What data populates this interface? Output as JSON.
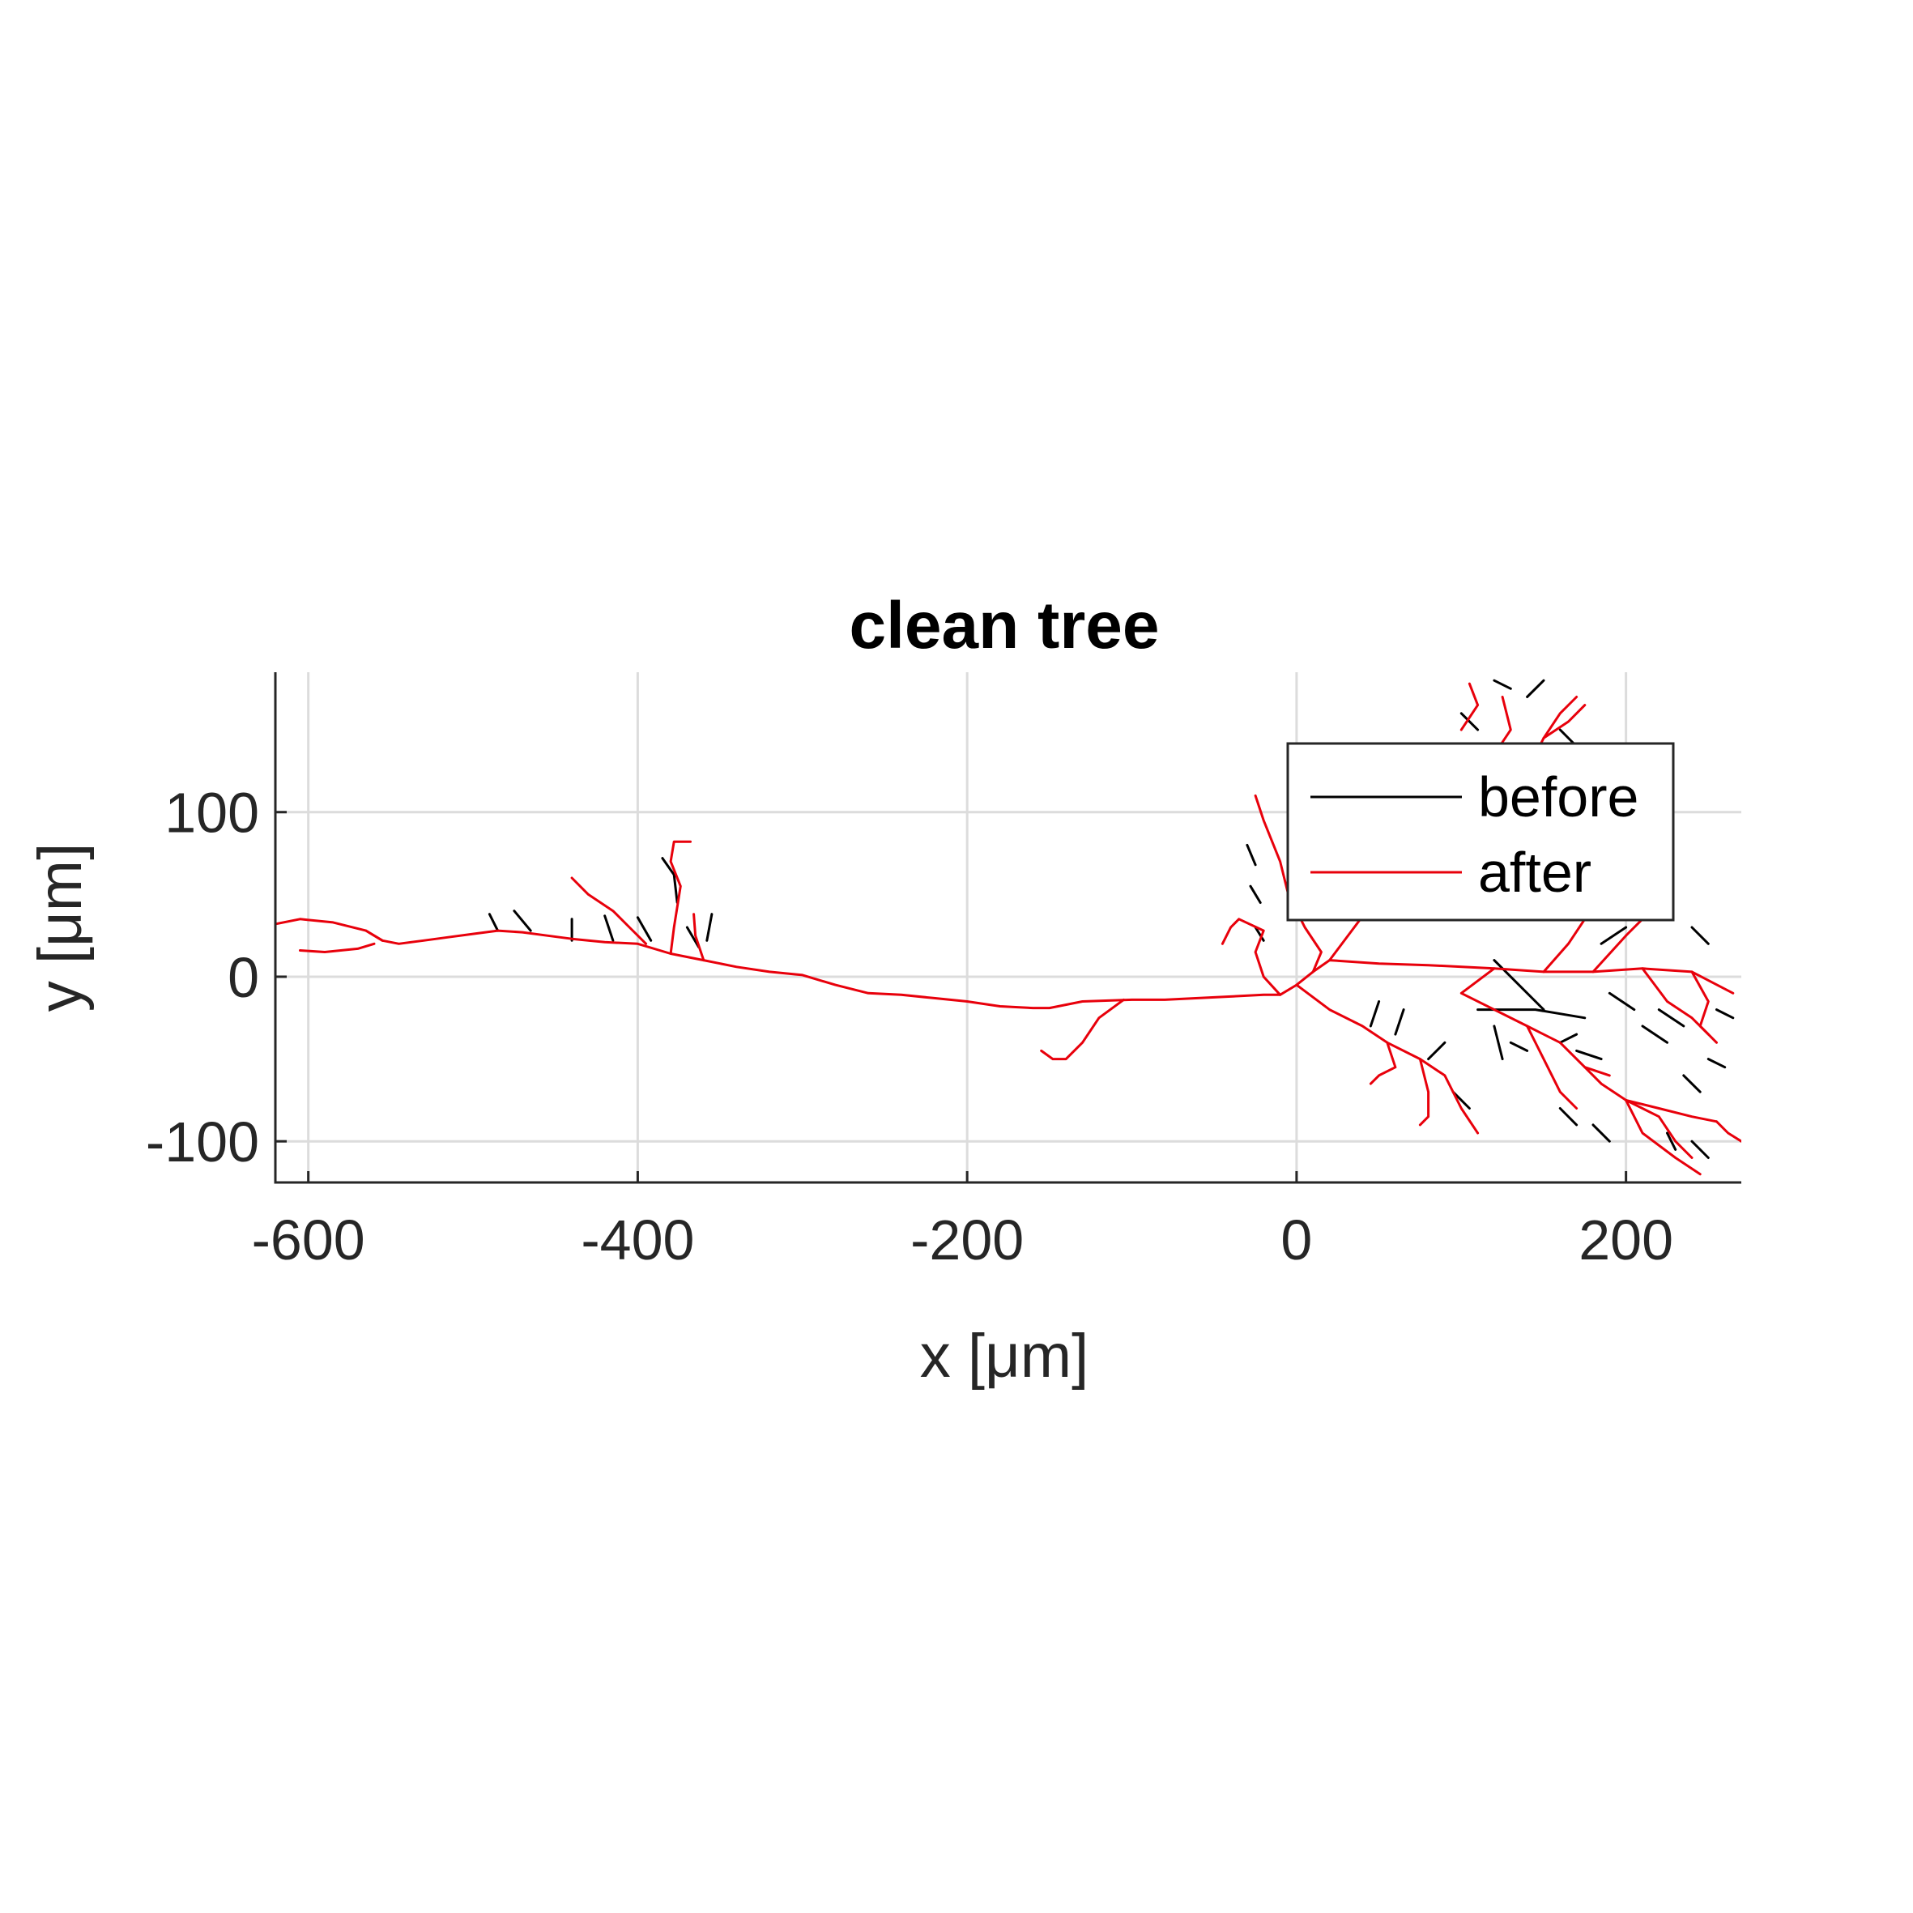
{
  "chart_data": {
    "type": "line",
    "title": "clean tree",
    "xlabel": "x [μm]",
    "ylabel": "y [μm]",
    "xlim": [
      -620,
      270
    ],
    "ylim": [
      -125,
      185
    ],
    "xticks": [
      -600,
      -400,
      -200,
      0,
      200
    ],
    "yticks": [
      -100,
      0,
      100
    ],
    "xtick_labels": [
      "-600",
      "-400",
      "-200",
      "0",
      "200"
    ],
    "ytick_labels": [
      "-100",
      "0",
      "100"
    ],
    "grid": true,
    "legend": {
      "placement": "top-right",
      "entries": [
        "before",
        "after"
      ]
    },
    "colors": {
      "before": "#000000",
      "after": "#e8000b"
    },
    "series": [
      {
        "name": "after",
        "color": "#e8000b",
        "segments": [
          [
            [
              -620,
              32
            ],
            [
              -605,
              35
            ],
            [
              -585,
              33
            ],
            [
              -565,
              28
            ],
            [
              -555,
              22
            ],
            [
              -545,
              20
            ],
            [
              -530,
              22
            ],
            [
              -515,
              24
            ],
            [
              -500,
              26
            ],
            [
              -485,
              28
            ],
            [
              -470,
              27
            ],
            [
              -455,
              25
            ],
            [
              -440,
              23
            ],
            [
              -420,
              21
            ],
            [
              -400,
              20
            ],
            [
              -380,
              14
            ],
            [
              -360,
              10
            ],
            [
              -340,
              6
            ],
            [
              -320,
              3
            ],
            [
              -300,
              1
            ],
            [
              -280,
              -5
            ],
            [
              -260,
              -10
            ],
            [
              -240,
              -11
            ],
            [
              -220,
              -13
            ],
            [
              -200,
              -15
            ],
            [
              -180,
              -18
            ],
            [
              -160,
              -19
            ],
            [
              -150,
              -19
            ],
            [
              -130,
              -15
            ],
            [
              -100,
              -14
            ],
            [
              -80,
              -14
            ],
            [
              -60,
              -13
            ],
            [
              -40,
              -12
            ],
            [
              -20,
              -11
            ],
            [
              -10,
              -11
            ],
            [
              0,
              -5
            ],
            [
              10,
              3
            ],
            [
              20,
              10
            ],
            [
              50,
              8
            ],
            [
              80,
              7
            ],
            [
              120,
              5
            ],
            [
              150,
              3
            ],
            [
              180,
              3
            ],
            [
              210,
              5
            ],
            [
              240,
              3
            ],
            [
              265,
              -10
            ]
          ],
          [
            [
              -605,
              16
            ],
            [
              -590,
              15
            ],
            [
              -570,
              17
            ],
            [
              -560,
              20
            ]
          ],
          [
            [
              -565,
              28
            ],
            [
              -555,
              22
            ]
          ],
          [
            [
              -440,
              60
            ],
            [
              -430,
              50
            ],
            [
              -415,
              40
            ],
            [
              -405,
              30
            ],
            [
              -395,
              20
            ]
          ],
          [
            [
              -380,
              14
            ],
            [
              -378,
              30
            ],
            [
              -374,
              55
            ],
            [
              -380,
              70
            ],
            [
              -378,
              82
            ],
            [
              -368,
              82
            ]
          ],
          [
            [
              -360,
              10
            ],
            [
              -365,
              25
            ],
            [
              -366,
              38
            ]
          ],
          [
            [
              -105,
              -14
            ],
            [
              -120,
              -25
            ],
            [
              -130,
              -40
            ],
            [
              -140,
              -50
            ],
            [
              -148,
              -50
            ],
            [
              -155,
              -45
            ]
          ],
          [
            [
              -10,
              -11
            ],
            [
              -20,
              0
            ],
            [
              -25,
              15
            ],
            [
              -20,
              28
            ],
            [
              -35,
              35
            ],
            [
              -40,
              30
            ],
            [
              -45,
              20
            ]
          ],
          [
            [
              10,
              3
            ],
            [
              15,
              15
            ],
            [
              5,
              30
            ],
            [
              -5,
              50
            ],
            [
              -10,
              70
            ],
            [
              -20,
              95
            ],
            [
              -25,
              110
            ]
          ],
          [
            [
              20,
              10
            ],
            [
              35,
              30
            ],
            [
              50,
              50
            ],
            [
              70,
              70
            ],
            [
              90,
              90
            ]
          ],
          [
            [
              50,
              50
            ],
            [
              45,
              60
            ],
            [
              40,
              70
            ]
          ],
          [
            [
              70,
              70
            ],
            [
              65,
              80
            ],
            [
              60,
              90
            ]
          ],
          [
            [
              0,
              -5
            ],
            [
              20,
              -20
            ],
            [
              40,
              -30
            ],
            [
              55,
              -40
            ],
            [
              75,
              -50
            ],
            [
              90,
              -60
            ],
            [
              100,
              -80
            ],
            [
              110,
              -95
            ]
          ],
          [
            [
              55,
              -40
            ],
            [
              60,
              -55
            ],
            [
              50,
              -60
            ],
            [
              45,
              -65
            ]
          ],
          [
            [
              75,
              -50
            ],
            [
              80,
              -70
            ],
            [
              80,
              -85
            ],
            [
              75,
              -90
            ]
          ],
          [
            [
              150,
              3
            ],
            [
              165,
              20
            ],
            [
              175,
              35
            ],
            [
              180,
              50
            ]
          ],
          [
            [
              120,
              5
            ],
            [
              100,
              -10
            ],
            [
              140,
              -30
            ],
            [
              160,
              -40
            ],
            [
              175,
              -55
            ],
            [
              190,
              -60
            ]
          ],
          [
            [
              140,
              -30
            ],
            [
              150,
              -50
            ],
            [
              160,
              -70
            ],
            [
              170,
              -80
            ]
          ],
          [
            [
              175,
              -55
            ],
            [
              185,
              -65
            ],
            [
              200,
              -75
            ],
            [
              220,
              -80
            ],
            [
              240,
              -85
            ],
            [
              255,
              -88
            ]
          ],
          [
            [
              200,
              -75
            ],
            [
              210,
              -95
            ],
            [
              230,
              -110
            ],
            [
              245,
              -120
            ]
          ],
          [
            [
              240,
              3
            ],
            [
              250,
              -15
            ],
            [
              245,
              -30
            ],
            [
              255,
              -40
            ]
          ],
          [
            [
              210,
              5
            ],
            [
              225,
              -15
            ],
            [
              240,
              -25
            ],
            [
              250,
              -35
            ]
          ],
          [
            [
              180,
              3
            ],
            [
              200,
              25
            ],
            [
              210,
              35
            ],
            [
              220,
              45
            ]
          ],
          [
            [
              200,
              -75
            ],
            [
              220,
              -85
            ],
            [
              230,
              -100
            ],
            [
              240,
              -110
            ]
          ],
          [
            [
              255,
              -88
            ],
            [
              262,
              -95
            ],
            [
              270,
              -100
            ]
          ],
          [
            [
              140,
              125
            ],
            [
              150,
              145
            ],
            [
              160,
              160
            ],
            [
              170,
              170
            ]
          ],
          [
            [
              120,
              135
            ],
            [
              130,
              150
            ],
            [
              125,
              170
            ]
          ],
          [
            [
              100,
              150
            ],
            [
              110,
              165
            ],
            [
              105,
              178
            ]
          ],
          [
            [
              150,
              145
            ],
            [
              165,
              155
            ],
            [
              175,
              165
            ]
          ]
        ]
      },
      {
        "name": "before",
        "color": "#000000",
        "segments": [
          [
            [
              -490,
              38
            ],
            [
              -485,
              28
            ]
          ],
          [
            [
              -475,
              40
            ],
            [
              -465,
              28
            ]
          ],
          [
            [
              -440,
              35
            ],
            [
              -440,
              22
            ]
          ],
          [
            [
              -420,
              37
            ],
            [
              -415,
              22
            ]
          ],
          [
            [
              -400,
              36
            ],
            [
              -392,
              22
            ]
          ],
          [
            [
              -385,
              72
            ],
            [
              -378,
              62
            ],
            [
              -376,
              45
            ]
          ],
          [
            [
              -370,
              30
            ],
            [
              -363,
              18
            ]
          ],
          [
            [
              -355,
              38
            ],
            [
              -358,
              22
            ]
          ],
          [
            [
              -30,
              80
            ],
            [
              -25,
              68
            ]
          ],
          [
            [
              -28,
              55
            ],
            [
              -22,
              45
            ]
          ],
          [
            [
              -25,
              30
            ],
            [
              -20,
              22
            ]
          ],
          [
            [
              50,
              -15
            ],
            [
              45,
              -30
            ]
          ],
          [
            [
              65,
              -20
            ],
            [
              60,
              -35
            ]
          ],
          [
            [
              80,
              -50
            ],
            [
              90,
              -40
            ]
          ],
          [
            [
              95,
              -70
            ],
            [
              105,
              -80
            ]
          ],
          [
            [
              120,
              -30
            ],
            [
              125,
              -50
            ]
          ],
          [
            [
              130,
              -40
            ],
            [
              140,
              -45
            ]
          ],
          [
            [
              160,
              -40
            ],
            [
              170,
              -35
            ]
          ],
          [
            [
              170,
              -45
            ],
            [
              185,
              -50
            ]
          ],
          [
            [
              110,
              -20
            ],
            [
              145,
              -20
            ],
            [
              175,
              -25
            ]
          ],
          [
            [
              120,
              10
            ],
            [
              135,
              -5
            ],
            [
              150,
              -20
            ]
          ],
          [
            [
              185,
              20
            ],
            [
              200,
              30
            ]
          ],
          [
            [
              190,
              -10
            ],
            [
              205,
              -20
            ]
          ],
          [
            [
              210,
              -30
            ],
            [
              225,
              -40
            ]
          ],
          [
            [
              220,
              -20
            ],
            [
              235,
              -30
            ]
          ],
          [
            [
              235,
              -60
            ],
            [
              245,
              -70
            ]
          ],
          [
            [
              250,
              -50
            ],
            [
              260,
              -55
            ]
          ],
          [
            [
              255,
              -20
            ],
            [
              265,
              -25
            ]
          ],
          [
            [
              240,
              30
            ],
            [
              250,
              20
            ]
          ],
          [
            [
              180,
              -90
            ],
            [
              190,
              -100
            ]
          ],
          [
            [
              160,
              -80
            ],
            [
              170,
              -90
            ]
          ],
          [
            [
              140,
              170
            ],
            [
              150,
              180
            ]
          ],
          [
            [
              120,
              180
            ],
            [
              130,
              175
            ]
          ],
          [
            [
              100,
              160
            ],
            [
              110,
              150
            ]
          ],
          [
            [
              80,
              140
            ],
            [
              90,
              130
            ]
          ],
          [
            [
              160,
              150
            ],
            [
              170,
              140
            ]
          ],
          [
            [
              240,
              -100
            ],
            [
              250,
              -110
            ]
          ],
          [
            [
              225,
              -95
            ],
            [
              230,
              -105
            ]
          ]
        ]
      }
    ]
  }
}
